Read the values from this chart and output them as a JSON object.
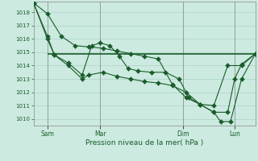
{
  "background_color": "#cceae0",
  "grid_color": "#aad4c8",
  "line_color": "#1a5c2a",
  "marker_color": "#1a5c2a",
  "xlabel": "Pression niveau de la mer( hPa )",
  "ylim": [
    1009.5,
    1018.8
  ],
  "yticks": [
    1010,
    1011,
    1012,
    1013,
    1014,
    1015,
    1016,
    1017,
    1018
  ],
  "xlim": [
    0,
    16.0
  ],
  "xtick_labels": [
    "Sam",
    "Mar",
    "Dim",
    "Lun"
  ],
  "xtick_positions": [
    1.0,
    4.8,
    10.8,
    14.5
  ],
  "vline_positions": [
    1.0,
    4.8,
    10.8,
    14.5
  ],
  "series1_x": [
    0,
    1.0,
    2.0,
    3.0,
    4.0,
    5.0,
    6.0,
    7.0,
    8.0,
    9.0,
    10.0,
    11.0,
    12.0,
    13.0,
    14.0,
    15.0,
    16.0
  ],
  "series1_y": [
    1018.7,
    1017.9,
    1016.2,
    1015.5,
    1015.4,
    1015.3,
    1015.1,
    1014.9,
    1014.7,
    1014.5,
    1012.6,
    1011.6,
    1011.1,
    1011.0,
    1014.0,
    1014.0,
    1014.9
  ],
  "series2_x": [
    0,
    1.0,
    1.5,
    2.5,
    3.5,
    4.2,
    4.8,
    5.5,
    6.2,
    6.8,
    7.5,
    8.5,
    9.5,
    10.5,
    11.2,
    12.0,
    13.0,
    14.0,
    14.5,
    15.0,
    16.0
  ],
  "series2_y": [
    1018.7,
    1016.2,
    1014.8,
    1014.2,
    1013.3,
    1015.5,
    1015.7,
    1015.5,
    1014.7,
    1013.8,
    1013.6,
    1013.5,
    1013.5,
    1013.0,
    1011.6,
    1011.1,
    1010.5,
    1010.5,
    1013.0,
    1014.1,
    1014.9
  ],
  "series3_x": [
    0,
    1.0,
    1.5,
    2.5,
    3.5,
    4.0,
    5.0,
    6.0,
    7.0,
    8.0,
    9.0,
    10.0,
    11.0,
    12.0,
    13.0,
    13.5,
    14.2,
    15.0,
    16.0
  ],
  "series3_y": [
    1018.7,
    1016.0,
    1014.8,
    1014.0,
    1013.0,
    1013.3,
    1013.5,
    1013.2,
    1013.0,
    1012.8,
    1012.7,
    1012.5,
    1012.0,
    1011.1,
    1010.5,
    1009.8,
    1009.8,
    1013.0,
    1014.9
  ],
  "flat_line_y": 1014.9,
  "flat_line_x_start": 1.0,
  "flat_line_x_end": 16.0
}
